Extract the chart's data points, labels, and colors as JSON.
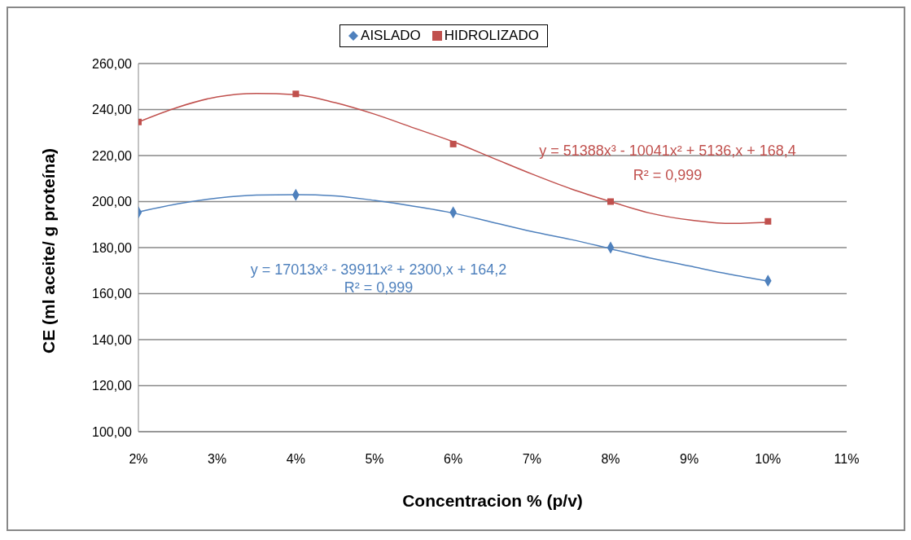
{
  "chart_data": {
    "type": "scatter",
    "xlabel": "Concentracion % (p/v)",
    "ylabel": "CE (ml aceite/ g proteína)",
    "xlim": [
      2,
      11
    ],
    "xticks": [
      {
        "value": 2,
        "label": "2%"
      },
      {
        "value": 3,
        "label": "3%"
      },
      {
        "value": 4,
        "label": "4%"
      },
      {
        "value": 5,
        "label": "5%"
      },
      {
        "value": 6,
        "label": "6%"
      },
      {
        "value": 7,
        "label": "7%"
      },
      {
        "value": 8,
        "label": "8%"
      },
      {
        "value": 9,
        "label": "9%"
      },
      {
        "value": 10,
        "label": "10%"
      },
      {
        "value": 11,
        "label": "11%"
      }
    ],
    "ylim": [
      100,
      260
    ],
    "yticks": [
      {
        "value": 100,
        "label": "100,00"
      },
      {
        "value": 120,
        "label": "120,00"
      },
      {
        "value": 140,
        "label": "140,00"
      },
      {
        "value": 160,
        "label": "160,00"
      },
      {
        "value": 180,
        "label": "180,00"
      },
      {
        "value": 200,
        "label": "200,00"
      },
      {
        "value": 220,
        "label": "220,00"
      },
      {
        "value": 240,
        "label": "240,00"
      },
      {
        "value": 260,
        "label": "260,00"
      }
    ],
    "grid": "y",
    "legend": "top",
    "series": [
      {
        "name": "AISLADO",
        "marker": "diamond",
        "color": "#4f81bd",
        "x": [
          2,
          4,
          6,
          8,
          10
        ],
        "values": [
          195.3,
          202.9,
          195.3,
          180,
          165.6
        ]
      },
      {
        "name": "HIDROLIZADO",
        "marker": "square",
        "color": "#c0504d",
        "x": [
          2,
          4,
          6,
          8,
          10
        ],
        "values": [
          234.6,
          246.8,
          225,
          200,
          191.4
        ]
      },
      {
        "type": "line",
        "marker": "none",
        "color": "#4f81bd",
        "x": [
          2,
          2.5,
          3,
          3.5,
          4,
          4.5,
          5,
          5.5,
          6,
          6.5,
          7,
          7.5,
          8,
          8.5,
          9,
          9.5,
          10
        ],
        "values": [
          195.5,
          199,
          201.5,
          202.8,
          203,
          202.5,
          200.5,
          198,
          195,
          191,
          187,
          183.5,
          179.5,
          175.5,
          172,
          168.5,
          165.5
        ]
      },
      {
        "type": "line",
        "marker": "none",
        "color": "#c0504d",
        "x": [
          2,
          2.5,
          3,
          3.5,
          4,
          4.5,
          5,
          5.5,
          6,
          6.5,
          7,
          7.5,
          8,
          8.5,
          9,
          9.5,
          10
        ],
        "values": [
          234.6,
          241,
          245.5,
          247,
          246.5,
          243,
          238,
          232,
          226,
          219,
          212,
          205.5,
          200,
          195,
          192,
          190.5,
          191
        ]
      }
    ],
    "annotations": [
      "y = 51388x³ - 10041x² + 5136,x + 168,4",
      "R² = 0,999",
      "y = 17013x³ - 39911x² + 2300,x + 164,2",
      "R² = 0,999"
    ]
  }
}
